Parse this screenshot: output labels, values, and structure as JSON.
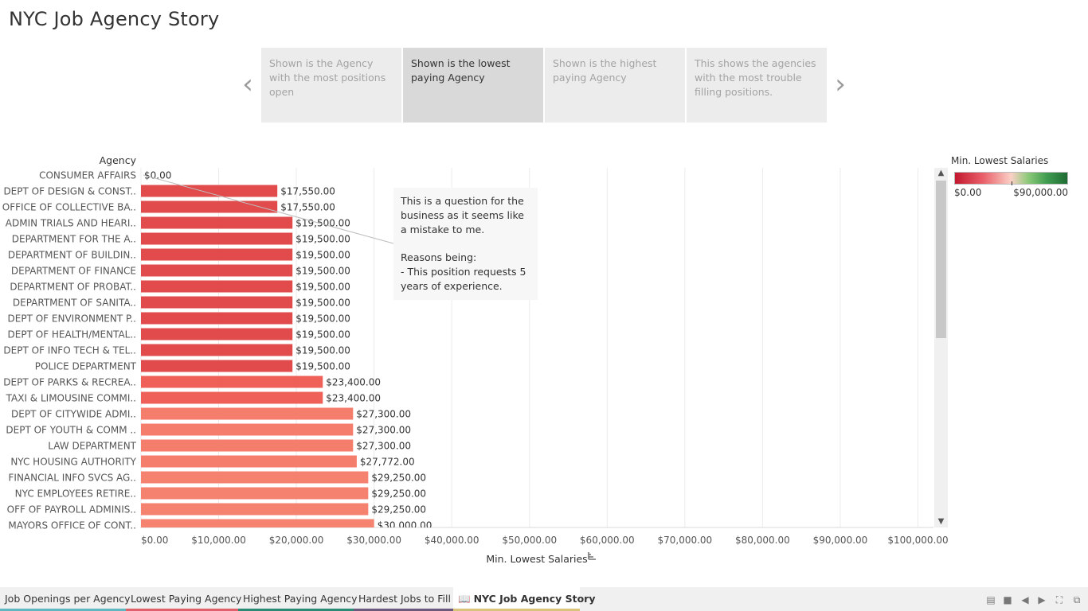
{
  "page": {
    "title": "NYC Job Agency Story"
  },
  "story": {
    "points": [
      {
        "label": "Shown is the Agency with the most positions open"
      },
      {
        "label": "Shown is the lowest paying Agency"
      },
      {
        "label": "Shown is the highest paying Agency"
      },
      {
        "label": "This shows the agencies with the most trouble filling positions."
      }
    ],
    "active_index": 1,
    "prev_icon": "chevron-left-icon",
    "next_icon": "chevron-right-icon"
  },
  "annotation": {
    "line1": "This is a question for the business as it seems like a mistake to me.",
    "line2": "Reasons being:",
    "line3": "- This position requests 5 years of experience."
  },
  "legend": {
    "title": "Min. Lowest Salaries",
    "min_label": "$0.00",
    "max_label": "$90,000.00",
    "colors": [
      "#c2182f",
      "#e9606a",
      "#fbd0c6",
      "#8dca7a",
      "#1e6b34"
    ]
  },
  "chart_data": {
    "type": "bar",
    "orientation": "horizontal",
    "ylabel": "Agency",
    "xlabel": "Min. Lowest Salaries",
    "xlim": [
      0,
      102000
    ],
    "grid": true,
    "x_ticks": [
      0,
      10000,
      20000,
      30000,
      40000,
      50000,
      60000,
      70000,
      80000,
      90000,
      100000
    ],
    "x_tick_labels": [
      "$0.00",
      "$10,000.00",
      "$20,000.00",
      "$30,000.00",
      "$40,000.00",
      "$50,000.00",
      "$60,000.00",
      "$70,000.00",
      "$80,000.00",
      "$90,000.00",
      "$100,000.00"
    ],
    "categories": [
      "CONSUMER AFFAIRS",
      "DEPT OF DESIGN & CONST..",
      "OFFICE OF COLLECTIVE BA..",
      "ADMIN TRIALS AND HEARI..",
      "DEPARTMENT FOR THE A..",
      "DEPARTMENT OF BUILDIN..",
      "DEPARTMENT OF FINANCE",
      "DEPARTMENT OF PROBAT..",
      "DEPARTMENT OF SANITA..",
      "DEPT OF ENVIRONMENT P..",
      "DEPT OF HEALTH/MENTAL..",
      "DEPT OF INFO TECH & TEL..",
      "POLICE DEPARTMENT",
      "DEPT OF PARKS & RECREA..",
      "TAXI & LIMOUSINE COMMI..",
      "DEPT OF CITYWIDE ADMI..",
      "DEPT OF YOUTH & COMM ..",
      "LAW DEPARTMENT",
      "NYC HOUSING AUTHORITY",
      "FINANCIAL INFO SVCS AG..",
      "NYC EMPLOYEES RETIRE..",
      "OFF OF PAYROLL ADMINIS..",
      "MAYORS OFFICE OF CONT.."
    ],
    "values": [
      0,
      17550,
      17550,
      19500,
      19500,
      19500,
      19500,
      19500,
      19500,
      19500,
      19500,
      19500,
      19500,
      23400,
      23400,
      27300,
      27300,
      27300,
      27772,
      29250,
      29250,
      29250,
      30000
    ],
    "value_labels": [
      "$0.00",
      "$17,550.00",
      "$17,550.00",
      "$19,500.00",
      "$19,500.00",
      "$19,500.00",
      "$19,500.00",
      "$19,500.00",
      "$19,500.00",
      "$19,500.00",
      "$19,500.00",
      "$19,500.00",
      "$19,500.00",
      "$23,400.00",
      "$23,400.00",
      "$27,300.00",
      "$27,300.00",
      "$27,300.00",
      "$27,772.00",
      "$29,250.00",
      "$29,250.00",
      "$29,250.00",
      "$30,000.00"
    ],
    "bar_colors": [
      "#e24b4b",
      "#e24b4b",
      "#e24b4b",
      "#e24b4b",
      "#e24b4b",
      "#e24b4b",
      "#e24b4b",
      "#e24b4b",
      "#e24b4b",
      "#e24b4b",
      "#e24b4b",
      "#e24b4b",
      "#e24b4b",
      "#ef6158",
      "#ef6158",
      "#f47d6c",
      "#f47d6c",
      "#f47d6c",
      "#f47d6c",
      "#f5816f",
      "#f5816f",
      "#f5816f",
      "#f5836f"
    ]
  },
  "tabs": [
    {
      "label": "Job Openings per Agency",
      "color": "#5fb8c1"
    },
    {
      "label": "Lowest Paying Agency",
      "color": "#e0606b"
    },
    {
      "label": "Highest Paying Agency",
      "color": "#2a8a73"
    },
    {
      "label": "Hardest Jobs to Fill",
      "color": "#6b5a7e"
    },
    {
      "label": "NYC Job Agency Story",
      "color": "#d9c27a",
      "icon": "book-icon"
    }
  ],
  "toolbar": {
    "icons": [
      "grid-view-icon",
      "filmstrip-view-icon",
      "previous-sheet-icon",
      "next-sheet-icon",
      "fit-to-screen-icon",
      "fullscreen-icon"
    ]
  }
}
